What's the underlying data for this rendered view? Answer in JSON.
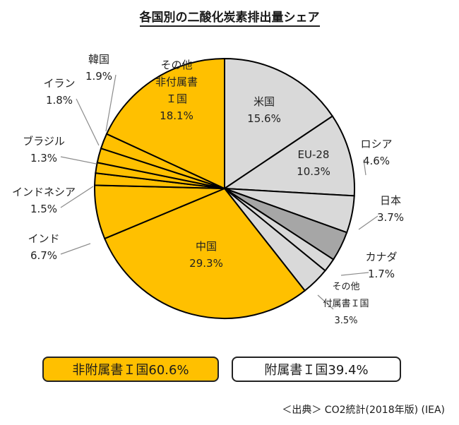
{
  "title": "各国別の二酸化炭素排出量シェア",
  "source": "＜出典＞ CO2統計(2018年版) (IEA)",
  "legend": {
    "non_annex": "非附属書Ｉ国60.6%",
    "annex": "附属書Ｉ国39.4%"
  },
  "colors": {
    "annex": "#D9D9D9",
    "japan": "#A6A6A6",
    "non_annex": "#FFC000",
    "stroke": "#000000",
    "leader": "#8c8c8c"
  },
  "chart_data": {
    "type": "pie",
    "title": "各国別の二酸化炭素排出量シェア",
    "start": "12 o'clock, clockwise",
    "slices": [
      {
        "label": "米国",
        "value": 15.6,
        "label_text": [
          "米国",
          "15.6%"
        ],
        "group": "annex",
        "inside": true
      },
      {
        "label": "EU-28",
        "value": 10.3,
        "label_text": [
          "EU-28",
          "10.3%"
        ],
        "group": "annex",
        "inside": true
      },
      {
        "label": "ロシア",
        "value": 4.6,
        "label_text": [
          "ロシア",
          "4.6%"
        ],
        "group": "annex",
        "inside": false
      },
      {
        "label": "日本",
        "value": 3.7,
        "label_text": [
          "日本",
          "3.7%"
        ],
        "group": "japan",
        "inside": false
      },
      {
        "label": "カナダ",
        "value": 1.7,
        "label_text": [
          "カナダ",
          "1.7%"
        ],
        "group": "annex",
        "inside": false
      },
      {
        "label": "その他付属書Ｉ国",
        "value": 3.5,
        "label_text": [
          "その他",
          "付属書Ｉ国",
          "3.5%"
        ],
        "group": "annex",
        "inside": false
      },
      {
        "label": "中国",
        "value": 29.3,
        "label_text": [
          "中国",
          "29.3%"
        ],
        "group": "non_annex",
        "inside": true
      },
      {
        "label": "インド",
        "value": 6.7,
        "label_text": [
          "インド",
          "6.7%"
        ],
        "group": "non_annex",
        "inside": false
      },
      {
        "label": "インドネシア",
        "value": 1.5,
        "label_text": [
          "インドネシア",
          "1.5%"
        ],
        "group": "non_annex",
        "inside": false
      },
      {
        "label": "ブラジル",
        "value": 1.3,
        "label_text": [
          "ブラジル",
          "1.3%"
        ],
        "group": "non_annex",
        "inside": false
      },
      {
        "label": "イラン",
        "value": 1.8,
        "label_text": [
          "イラン",
          "1.8%"
        ],
        "group": "non_annex",
        "inside": false
      },
      {
        "label": "韓国",
        "value": 1.9,
        "label_text": [
          "韓国",
          "1.9%"
        ],
        "group": "non_annex",
        "inside": false
      },
      {
        "label": "その他非付属書Ｉ国",
        "value": 18.1,
        "label_text": [
          "その他",
          "非付属書",
          "Ｉ国",
          "18.1%"
        ],
        "group": "non_annex",
        "inside": true
      }
    ]
  }
}
